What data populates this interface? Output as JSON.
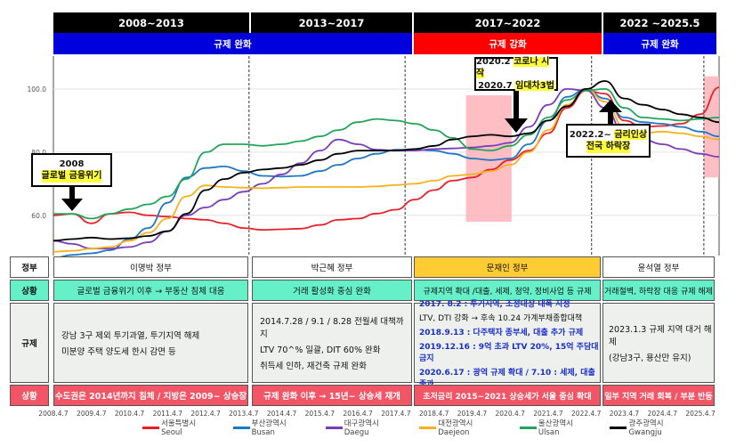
{
  "periods": [
    {
      "label": "2008~2013"
    },
    {
      "label": "2013~2017"
    },
    {
      "label": "2017~2022"
    },
    {
      "label": "2022 ~2025.5"
    }
  ],
  "policy_bands": [
    {
      "label": "규제 완화",
      "color": "#0000dd"
    },
    {
      "label": "규제 강화",
      "color": "#ff0000"
    },
    {
      "label": "규제 완화",
      "color": "#0000dd"
    }
  ],
  "annotations": {
    "gfc": {
      "year": "2008",
      "text": "글로벌 금융위기"
    },
    "covid": {
      "line1_prefix": "2020.2",
      "line1_hl": "코로나 시작",
      "line2_prefix": "2020.7",
      "line2_hl": "임대차3법"
    },
    "rate": {
      "line1_prefix": "2022.2~",
      "line1_hl": "금리인상",
      "line2_hl": "전국 하락장"
    }
  },
  "table": {
    "row_labels": {
      "government": "정부",
      "situation": "상황",
      "regulation": "규제",
      "situation2": "상황"
    },
    "government": [
      "이명박 정부",
      "박근혜 정부",
      "문재인 정부",
      "윤석열 정부"
    ],
    "situation": [
      "글로벌 금융위기 이후 → 부동산 침체 대응",
      "거래 활성화 중심 완화",
      "규제지역 확대 /대출, 세제, 청약, 정비사업 등 규제",
      "거래절벽, 하락장 대응 규제 해제"
    ],
    "regulation": [
      [
        "강남 3구 제외 투기과열, 투기지역 해제",
        "미분양 주택 양도세 한시 감면 등"
      ],
      [
        "2014.7.28 / 9.1 / 8.28 전월세 대책까지",
        "LTV 70^% 일괄, DIT 60% 완화",
        "취득세 인하, 재건축 규제 완화"
      ],
      [
        "2017. 8.2 : 투기지역, 조정대상 대폭 지정",
        "LTV, DTI 강화 → 후속 10.24 가계부채종합대책",
        "2018.9.13 : 다주택자 종부세, 대출 추가 규제",
        "2019.12.16 : 9억 초과 LTV 20%, 15억 주담대 금지",
        "2020.6.17 : 광역 규제 확대 / 7.10 : 세제, 대출 중과"
      ],
      [
        "2023.1.3 규제 지역 대거 해제",
        "(강남3구, 용산만 유지)"
      ]
    ],
    "regulation_blue_lines": [
      [],
      [],
      [
        0,
        2,
        3,
        4
      ],
      []
    ],
    "situation2": [
      "수도권은 2014년까지 침체 / 지방은 2009~ 상승장",
      "규제 완화 이후 → 15년~ 상승세 재개",
      "초저금리 2015~2021 상승세가 서울 중심 확대",
      "일부 지역 거래 회복 / 부분 반등"
    ]
  },
  "colors": {
    "gov_highlight": "#ffcc33",
    "situation_bg": "#66f0c8",
    "regulation_bg": "#eef0ee",
    "situation2_bg": "#f25565",
    "shade": "#ffb3ba",
    "blue_text": "#1a2fc8"
  },
  "chart_data": {
    "type": "line",
    "title": "",
    "xlabel": "",
    "ylabel": "",
    "ylim": [
      47.3,
      110.4
    ],
    "xlim": [
      2008.26,
      2025.75
    ],
    "yticks": [
      60.0,
      80.0,
      100.0
    ],
    "ytick_labels": [
      "60.0",
      "80.0",
      "100.0"
    ],
    "xtick_labels": [
      "2008.4.7",
      "2009.4.7",
      "2010.4.7",
      "2011.4.7",
      "2012.4.7",
      "2013.4.7",
      "2014.4.7",
      "2015.4.7",
      "2016.4.7",
      "2017.4.7",
      "2018.4.7",
      "2019.4.7",
      "2020.4.7",
      "2021.4.7",
      "2022.4.7",
      "2023.4.7",
      "2024.4.7",
      "2025.4.7"
    ],
    "xticks": [
      2008.26,
      2009.26,
      2010.26,
      2011.26,
      2012.26,
      2013.26,
      2014.26,
      2015.26,
      2016.26,
      2017.26,
      2018.26,
      2019.26,
      2020.26,
      2021.26,
      2022.26,
      2023.26,
      2024.26,
      2025.26
    ],
    "grid": true,
    "legend_position": "bottom",
    "period_dividers": [
      2013.4,
      2017.5,
      2022.4,
      2025.35
    ],
    "shaded_ranges": [
      {
        "x": [
          2019.1,
          2020.3
        ],
        "y": [
          58,
          98
        ]
      },
      {
        "x": [
          2025.35,
          2025.75
        ],
        "y": [
          72,
          104
        ]
      }
    ],
    "x": [
      2008.26,
      2008.75,
      2009.26,
      2009.75,
      2010.26,
      2010.75,
      2011.26,
      2011.75,
      2012.26,
      2012.75,
      2013.26,
      2013.75,
      2014.26,
      2014.75,
      2015.26,
      2015.75,
      2016.26,
      2016.75,
      2017.26,
      2017.75,
      2018.26,
      2018.75,
      2019.26,
      2019.75,
      2020.26,
      2020.75,
      2021.26,
      2021.75,
      2022.26,
      2022.75,
      2023.26,
      2023.75,
      2024.26,
      2024.75,
      2025.26,
      2025.75
    ],
    "series": [
      {
        "name": "서울특별시 Seoul",
        "color": "#e8202a",
        "values": [
          60.0,
          60.5,
          57.5,
          60.5,
          61.0,
          60.0,
          59.6,
          59.0,
          58.6,
          57.5,
          56.0,
          55.4,
          55.6,
          55.8,
          57.0,
          58.6,
          59.0,
          60.6,
          61.8,
          65.0,
          68.0,
          71.0,
          72.0,
          74.5,
          77.5,
          80.5,
          86.0,
          94.0,
          99.5,
          98.5,
          90.0,
          88.0,
          88.3,
          89.0,
          92.0,
          100.5
        ]
      },
      {
        "name": "부산광역시 Busan",
        "color": "#1f77c4",
        "values": [
          46.5,
          47.5,
          48.0,
          49.0,
          52.5,
          56.0,
          64.0,
          72.0,
          75.0,
          75.5,
          74.0,
          72.5,
          72.3,
          72.5,
          74.0,
          76.0,
          78.0,
          79.5,
          80.8,
          80.8,
          80.5,
          79.5,
          78.0,
          77.5,
          78.0,
          82.5,
          90.0,
          97.5,
          100.0,
          97.0,
          91.0,
          89.5,
          89.0,
          88.0,
          86.5,
          85.0
        ]
      },
      {
        "name": "대구광역시 Daegu",
        "color": "#7a3db8",
        "values": [
          52.0,
          51.0,
          49.5,
          49.5,
          50.0,
          51.5,
          55.0,
          60.0,
          62.5,
          65.0,
          67.5,
          70.0,
          73.0,
          76.5,
          80.5,
          84.0,
          82.5,
          80.8,
          80.5,
          80.5,
          81.0,
          81.2,
          81.5,
          82.0,
          83.0,
          88.0,
          95.0,
          100.0,
          99.5,
          94.0,
          86.0,
          84.0,
          82.5,
          81.0,
          79.5,
          78.5
        ]
      },
      {
        "name": "대전광역시 Daejeon",
        "color": "#f5b21e",
        "values": [
          48.5,
          48.8,
          49.5,
          50.0,
          52.0,
          54.5,
          59.0,
          66.0,
          69.5,
          69.0,
          68.8,
          68.6,
          68.8,
          69.0,
          69.0,
          69.0,
          69.0,
          69.2,
          69.6,
          70.0,
          71.0,
          72.5,
          73.0,
          74.0,
          76.0,
          80.0,
          87.0,
          95.0,
          100.0,
          96.0,
          88.0,
          86.0,
          86.5,
          86.0,
          85.0,
          84.0
        ]
      },
      {
        "name": "울산광역시 Ulsan",
        "color": "#22a55a",
        "values": [
          60.5,
          60.5,
          59.0,
          60.5,
          62.0,
          63.5,
          66.0,
          71.5,
          80.0,
          82.5,
          82.5,
          82.0,
          82.5,
          83.5,
          85.0,
          87.0,
          89.5,
          90.5,
          90.0,
          89.0,
          87.0,
          84.5,
          81.0,
          80.5,
          82.0,
          85.5,
          91.0,
          96.5,
          99.5,
          100.0,
          94.0,
          91.0,
          90.5,
          90.0,
          90.5,
          91.0
        ]
      },
      {
        "name": "광주광역시 Gwangju",
        "color": "#000000",
        "values": [
          52.0,
          52.5,
          53.0,
          52.5,
          52.8,
          53.5,
          55.0,
          60.5,
          68.0,
          71.5,
          73.5,
          74.5,
          75.0,
          76.0,
          77.5,
          79.5,
          80.5,
          80.5,
          80.5,
          81.0,
          82.0,
          84.0,
          85.0,
          85.5,
          85.0,
          86.0,
          90.0,
          94.5,
          100.0,
          102.5,
          97.0,
          95.0,
          93.5,
          92.0,
          91.0,
          89.5
        ]
      }
    ]
  }
}
